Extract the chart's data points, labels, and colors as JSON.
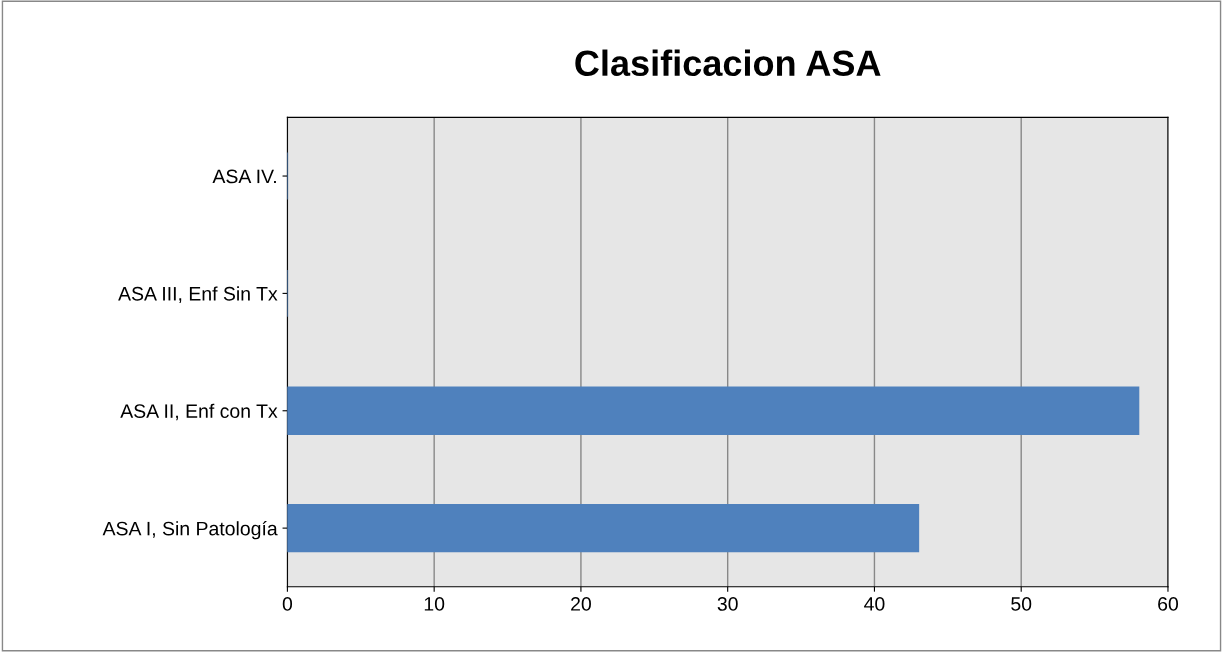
{
  "chart_data": {
    "type": "bar",
    "orientation": "horizontal",
    "title": "Clasificacion ASA",
    "categories": [
      "ASA IV.",
      "ASA III, Enf Sin Tx",
      "ASA II, Enf con Tx",
      "ASA I, Sin Patología"
    ],
    "values": [
      0,
      0,
      58,
      43
    ],
    "color": "#4f81bd",
    "xlim": [
      0,
      60
    ],
    "xticks": [
      0,
      10,
      20,
      30,
      40,
      50,
      60
    ],
    "grid": "x",
    "legend": false
  }
}
